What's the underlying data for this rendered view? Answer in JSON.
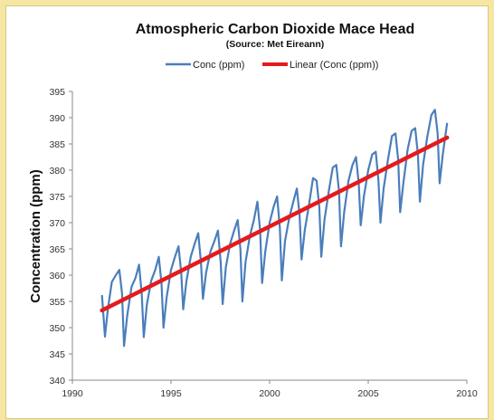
{
  "chart_data": {
    "type": "line",
    "title": "Atmospheric Carbon Dioxide Mace Head",
    "subtitle": "(Source: Met Eireann)",
    "xlabel": "",
    "ylabel": "Concentration (ppm)",
    "xlim": [
      1990,
      2010
    ],
    "ylim": [
      340,
      395
    ],
    "x_ticks": [
      1990,
      1995,
      2000,
      2005,
      2010
    ],
    "y_ticks": [
      340,
      345,
      350,
      355,
      360,
      365,
      370,
      375,
      380,
      385,
      390,
      395
    ],
    "grid": false,
    "legend": "top",
    "series": [
      {
        "name": "Conc (ppm)",
        "color": "#4a7ebb",
        "x": [
          1991.5,
          1991.65,
          1991.8,
          1992.0,
          1992.2,
          1992.38,
          1992.52,
          1992.62,
          1992.78,
          1993.0,
          1993.2,
          1993.38,
          1993.52,
          1993.62,
          1993.78,
          1994.0,
          1994.2,
          1994.38,
          1994.52,
          1994.62,
          1994.78,
          1995.0,
          1995.2,
          1995.38,
          1995.52,
          1995.62,
          1995.78,
          1996.0,
          1996.2,
          1996.38,
          1996.52,
          1996.62,
          1996.78,
          1997.0,
          1997.2,
          1997.38,
          1997.52,
          1997.62,
          1997.78,
          1998.0,
          1998.2,
          1998.38,
          1998.52,
          1998.62,
          1998.78,
          1999.0,
          1999.2,
          1999.38,
          1999.52,
          1999.62,
          1999.78,
          2000.0,
          2000.2,
          2000.38,
          2000.52,
          2000.62,
          2000.78,
          2001.0,
          2001.2,
          2001.38,
          2001.52,
          2001.62,
          2001.78,
          2002.0,
          2002.2,
          2002.38,
          2002.52,
          2002.62,
          2002.78,
          2003.0,
          2003.2,
          2003.38,
          2003.52,
          2003.62,
          2003.78,
          2004.0,
          2004.2,
          2004.38,
          2004.52,
          2004.62,
          2004.78,
          2005.0,
          2005.2,
          2005.38,
          2005.52,
          2005.62,
          2005.78,
          2006.0,
          2006.2,
          2006.38,
          2006.52,
          2006.62,
          2006.78,
          2007.0,
          2007.2,
          2007.38,
          2007.52,
          2007.62,
          2007.78,
          2008.0,
          2008.2,
          2008.38,
          2008.52,
          2008.62,
          2008.78,
          2009.0
        ],
        "values": [
          356.2,
          348.3,
          353.5,
          358.7,
          360.0,
          361.0,
          356.5,
          346.5,
          352.3,
          357.8,
          359.5,
          362.0,
          356.3,
          348.2,
          354.5,
          359.0,
          361.0,
          363.5,
          358.5,
          350.0,
          355.8,
          361.0,
          363.5,
          365.5,
          360.5,
          353.5,
          358.8,
          363.5,
          366.0,
          368.0,
          362.5,
          355.5,
          360.5,
          364.5,
          366.5,
          368.5,
          362.5,
          354.5,
          361.5,
          366.0,
          368.5,
          370.5,
          365.0,
          355.0,
          362.5,
          367.5,
          370.5,
          374.0,
          368.5,
          358.5,
          364.5,
          370.0,
          373.0,
          375.0,
          369.0,
          359.0,
          366.5,
          371.0,
          374.0,
          376.5,
          371.5,
          363.0,
          368.5,
          373.5,
          378.5,
          378.0,
          373.0,
          363.5,
          370.5,
          376.0,
          380.5,
          381.0,
          376.0,
          365.5,
          372.0,
          378.0,
          381.0,
          382.5,
          377.5,
          369.5,
          375.0,
          380.0,
          383.0,
          383.5,
          378.0,
          370.0,
          376.5,
          382.0,
          386.5,
          387.0,
          382.0,
          372.0,
          377.5,
          384.0,
          387.5,
          388.0,
          383.0,
          374.0,
          381.0,
          386.5,
          390.5,
          391.5,
          387.0,
          377.5,
          383.0,
          389.0
        ]
      },
      {
        "name": "Linear (Conc (ppm))",
        "color": "#e51b1b",
        "x": [
          1991.5,
          2009.0
        ],
        "values": [
          353.3,
          386.2
        ]
      }
    ]
  }
}
